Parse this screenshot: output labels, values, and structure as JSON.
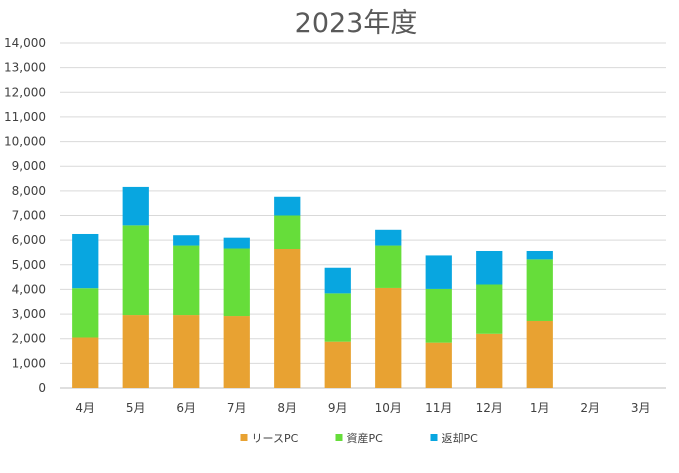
{
  "chart_data": {
    "type": "bar",
    "stacked": true,
    "title": "2023年度",
    "xlabel": "",
    "ylabel": "",
    "categories": [
      "4月",
      "5月",
      "6月",
      "7月",
      "8月",
      "9月",
      "10月",
      "11月",
      "12月",
      "1月",
      "2月",
      "3月"
    ],
    "series": [
      {
        "name": "リースPC",
        "color": "#e8a232",
        "values": [
          2050,
          2960,
          2960,
          2920,
          5640,
          1880,
          4060,
          1840,
          2200,
          2720,
          null,
          null
        ]
      },
      {
        "name": "資産PC",
        "color": "#66dd3a",
        "values": [
          2000,
          3640,
          2820,
          2740,
          1360,
          1960,
          1720,
          2180,
          2000,
          2500,
          null,
          null
        ]
      },
      {
        "name": "返却PC",
        "color": "#08a6e0",
        "values": [
          2200,
          1560,
          420,
          440,
          760,
          1040,
          640,
          1360,
          1360,
          340,
          null,
          null
        ]
      }
    ],
    "ylim": [
      0,
      14000
    ],
    "ytick_step": 1000,
    "ytick_labels": [
      "0",
      "1,000",
      "2,000",
      "3,000",
      "4,000",
      "5,000",
      "6,000",
      "7,000",
      "8,000",
      "9,000",
      "10,000",
      "11,000",
      "12,000",
      "13,000",
      "14,000"
    ],
    "grid": true,
    "legend": "bottom"
  }
}
